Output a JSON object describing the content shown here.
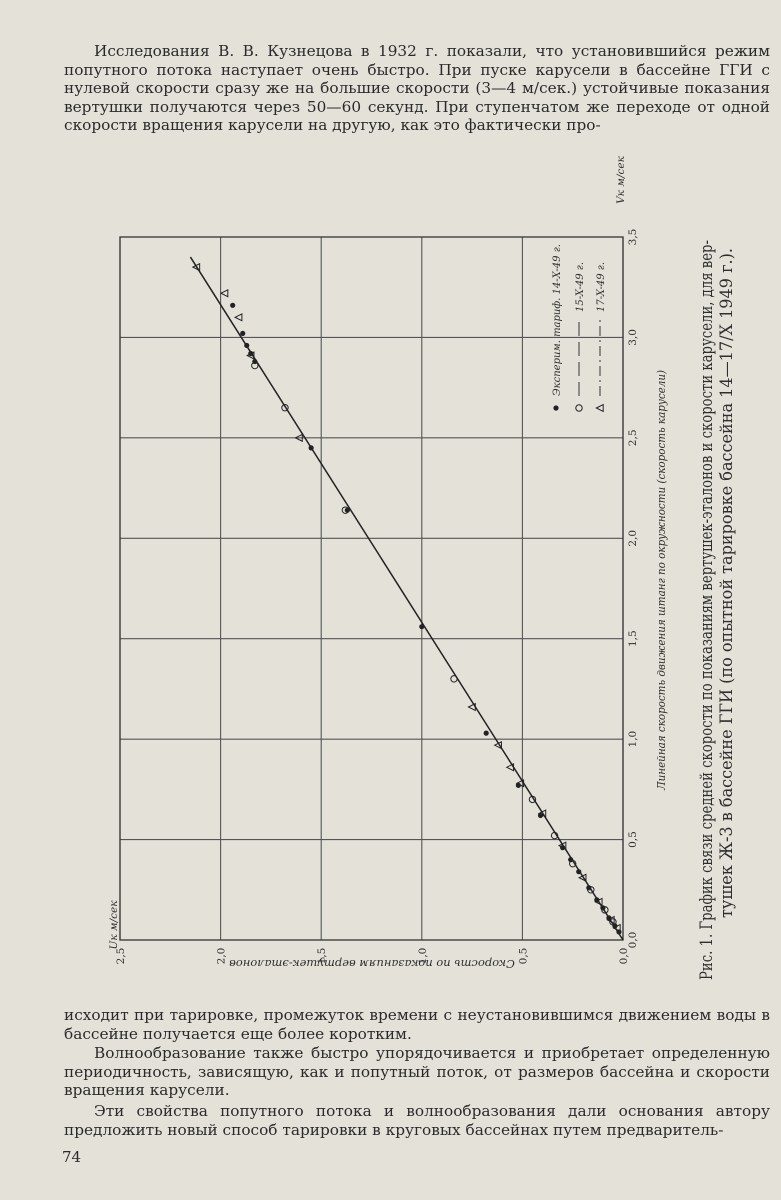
{
  "text": {
    "paragraph_top": "Исследования В. В. Кузнецова в 1932 г. показали, что установившийся режим попутного потока наступает очень быстро. При пуске карусели в бассейне ГГИ с нулевой скорости сразу же на большие скорости (3—4 м/сек.) устойчивые показания вертушки получаются через 50—60 секунд. При ступенчатом же переходе от одной скорости вращения карусели на другую, как это фактически про-",
    "paragraph_continued": "исходит при тарировке, промежуток времени с неустановившимся движением воды в бассейне получается еще более коротким.",
    "paragraph_waves": "Волнообразование также быстро упорядочивается и приобретает определенную периодичность, зависящую, как и попутный поток, от размеров бассейна и скорости вращения карусели.",
    "paragraph_last": "Эти свойства попутного потока и волнообразования дали основания автору предложить новый способ тарировки в круговых бассейнах путем предваритель-",
    "page_number": "74"
  },
  "figure": {
    "caption_line1": "Рис. 1. График связи средней скорости по показаниям вертушек-эталонов и скорости карусели, для вер-",
    "caption_line2": "тушек Ж-3 в бассейне ГГИ (по опытной тарировке бассейна 14—17/X 1949 г.)."
  },
  "chart_data": {
    "type": "scatter",
    "title": "",
    "xlabel": "Скорость по показаниям вертушек-эталонов",
    "x_unit_label": "Uк м/сек",
    "ylabel": "Линейная скорость движения штанг по окружности (скорость карусели)",
    "y_unit_label": "Vк м/сек",
    "xlim": [
      0,
      2.5
    ],
    "ylim": [
      0,
      3.5
    ],
    "x_ticks": [
      "0,0",
      "0,5",
      "1,0",
      "1,5",
      "2,0",
      "2,5"
    ],
    "y_ticks": [
      "0,0",
      "0,5",
      "1,0",
      "1,5",
      "2,0",
      "2,5",
      "3,0",
      "3,5"
    ],
    "grid": true,
    "legend_position": "top-right",
    "series": [
      {
        "name": "Эксперим. тариф. 14-X-49 г.",
        "marker": "dot",
        "points": [
          [
            0.02,
            0.04
          ],
          [
            0.04,
            0.07
          ],
          [
            0.07,
            0.11
          ],
          [
            0.1,
            0.16
          ],
          [
            0.13,
            0.2
          ],
          [
            0.17,
            0.26
          ],
          [
            0.22,
            0.34
          ],
          [
            0.26,
            0.4
          ],
          [
            0.3,
            0.46
          ],
          [
            0.41,
            0.62
          ],
          [
            0.52,
            0.77
          ],
          [
            0.68,
            1.03
          ],
          [
            1.0,
            1.56
          ],
          [
            1.37,
            2.14
          ],
          [
            1.55,
            2.45
          ],
          [
            1.83,
            2.88
          ],
          [
            1.85,
            2.92
          ],
          [
            1.87,
            2.96
          ],
          [
            1.89,
            3.02
          ],
          [
            1.94,
            3.16
          ]
        ]
      },
      {
        "name": "15-X-49 г.",
        "marker": "circle",
        "points": [
          [
            0.05,
            0.09
          ],
          [
            0.09,
            0.15
          ],
          [
            0.16,
            0.25
          ],
          [
            0.25,
            0.38
          ],
          [
            0.34,
            0.52
          ],
          [
            0.45,
            0.7
          ],
          [
            0.84,
            1.3
          ],
          [
            1.38,
            2.14
          ],
          [
            1.68,
            2.65
          ],
          [
            1.83,
            2.86
          ]
        ]
      },
      {
        "name": "17-X-49 г.",
        "marker": "triangle",
        "points": [
          [
            0.03,
            0.06
          ],
          [
            0.06,
            0.1
          ],
          [
            0.12,
            0.19
          ],
          [
            0.2,
            0.31
          ],
          [
            0.3,
            0.47
          ],
          [
            0.4,
            0.63
          ],
          [
            0.51,
            0.78
          ],
          [
            0.56,
            0.86
          ],
          [
            0.62,
            0.97
          ],
          [
            0.75,
            1.16
          ],
          [
            1.61,
            2.5
          ],
          [
            1.85,
            2.91
          ],
          [
            1.91,
            3.1
          ],
          [
            1.98,
            3.22
          ],
          [
            2.12,
            3.35
          ]
        ]
      }
    ],
    "fit_line": [
      [
        0,
        0
      ],
      [
        2.15,
        3.4
      ]
    ]
  }
}
